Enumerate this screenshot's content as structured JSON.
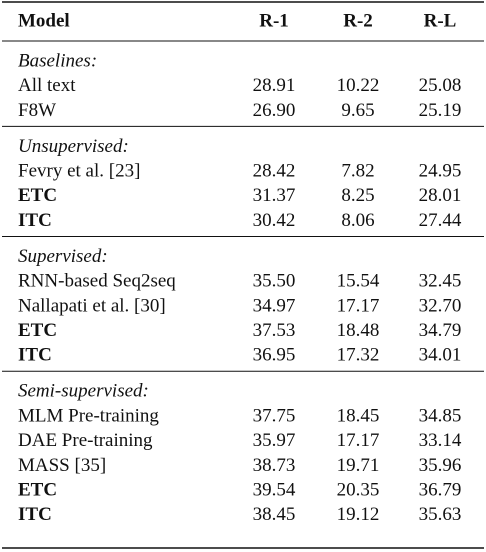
{
  "table": {
    "header": [
      "Model",
      "R-1",
      "R-2",
      "R-L"
    ],
    "groups": [
      {
        "label": "Baselines:",
        "rows": [
          {
            "cells": [
              "All text",
              "28.91",
              "10.22",
              "25.08"
            ]
          },
          {
            "cells": [
              "F8W",
              "26.90",
              "9.65",
              "25.19"
            ]
          }
        ]
      },
      {
        "label": "Unsupervised:",
        "rows": [
          {
            "cells": [
              "Fevry et al. [23]",
              "28.42",
              "7.82",
              "24.95"
            ]
          },
          {
            "cells": [
              "ETC",
              "31.37",
              "8.25",
              "28.01"
            ],
            "bold": true
          },
          {
            "cells": [
              "ITC",
              "30.42",
              "8.06",
              "27.44"
            ],
            "bold": true
          }
        ]
      },
      {
        "label": "Supervised:",
        "rows": [
          {
            "cells": [
              "RNN-based Seq2seq",
              "35.50",
              "15.54",
              "32.45"
            ]
          },
          {
            "cells": [
              "Nallapati et al. [30]",
              "34.97",
              "17.17",
              "32.70"
            ]
          },
          {
            "cells": [
              "ETC",
              "37.53",
              "18.48",
              "34.79"
            ],
            "bold": true
          },
          {
            "cells": [
              "ITC",
              "36.95",
              "17.32",
              "34.01"
            ],
            "bold": true
          }
        ]
      },
      {
        "label": "Semi-supervised:",
        "rows": [
          {
            "cells": [
              "MLM Pre-training",
              "37.75",
              "18.45",
              "34.85"
            ]
          },
          {
            "cells": [
              "DAE Pre-training",
              "35.97",
              "17.17",
              "33.14"
            ]
          },
          {
            "cells": [
              "MASS [35]",
              "38.73",
              "19.71",
              "35.96"
            ]
          },
          {
            "cells": [
              "ETC",
              "39.54",
              "20.35",
              "36.79"
            ],
            "bold": true
          },
          {
            "cells": [
              "ITC",
              "38.45",
              "19.12",
              "35.63"
            ],
            "bold": true
          }
        ]
      }
    ]
  }
}
